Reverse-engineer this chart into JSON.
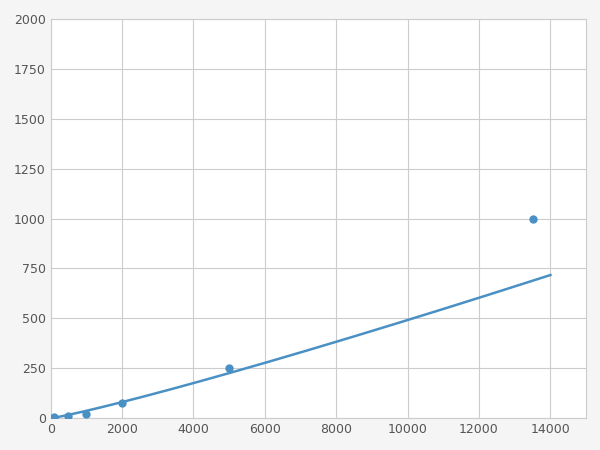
{
  "x_points": [
    100,
    500,
    1000,
    2000,
    5000,
    13500
  ],
  "y_points": [
    5,
    12,
    20,
    75,
    250,
    1000
  ],
  "line_color": "#4a90c4",
  "marker_color": "#4a90c4",
  "marker_size": 6,
  "line_width": 1.8,
  "xlim": [
    0,
    15000
  ],
  "ylim": [
    0,
    2000
  ],
  "xticks": [
    0,
    2000,
    4000,
    6000,
    8000,
    10000,
    12000,
    14000
  ],
  "yticks": [
    0,
    250,
    500,
    750,
    1000,
    1250,
    1500,
    1750,
    2000
  ],
  "grid_color": "#cccccc",
  "background_color": "#ffffff",
  "fig_background": "#f5f5f5",
  "power_a": 0.00018,
  "power_b": 1.65
}
